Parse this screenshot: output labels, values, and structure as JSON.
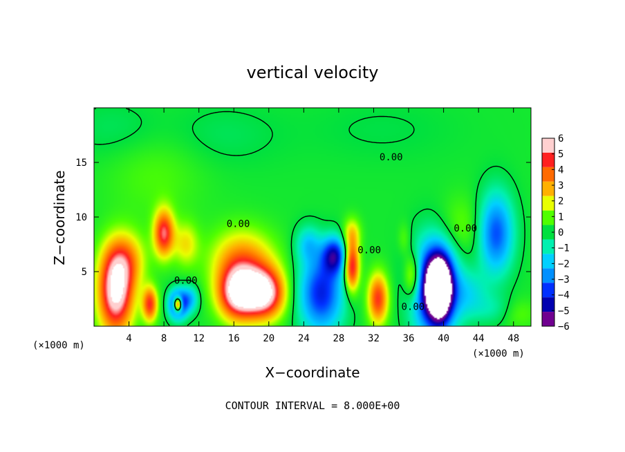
{
  "chart_data": {
    "type": "heatmap",
    "title": "vertical velocity",
    "xlabel": "X−coordinate",
    "ylabel": "Z−coordinate",
    "x_unit_label": "(×1000 m)",
    "z_unit_label": "(×1000 m)",
    "xlim": [
      0,
      50
    ],
    "ylim": [
      0,
      20
    ],
    "x_ticks": [
      4,
      8,
      12,
      16,
      20,
      24,
      28,
      32,
      36,
      40,
      44,
      48
    ],
    "y_ticks": [
      5,
      10,
      15
    ],
    "colorbar": {
      "min": -6,
      "max": 6,
      "ticks": [
        6,
        5,
        4,
        3,
        2,
        1,
        0,
        -1,
        -2,
        -3,
        -4,
        -5,
        -6
      ],
      "colors": [
        "#ffd0d0",
        "#ff2020",
        "#ff6a00",
        "#ffb000",
        "#e8ff00",
        "#50ff00",
        "#00e040",
        "#00f0b0",
        "#00d0ff",
        "#0090ff",
        "#0030ff",
        "#0000b0",
        "#700090"
      ]
    },
    "contour_labels": [
      {
        "text": "0.00",
        "x": 34.0,
        "z": 15.5
      },
      {
        "text": "0.00",
        "x": 16.5,
        "z": 9.4
      },
      {
        "text": "0.00",
        "x": 10.5,
        "z": 4.2
      },
      {
        "text": "0.00",
        "x": 31.5,
        "z": 7.0
      },
      {
        "text": "0.00",
        "x": 42.5,
        "z": 9.0
      },
      {
        "text": "0.00",
        "x": 36.5,
        "z": 1.8
      }
    ],
    "features": [
      {
        "x": 2.5,
        "z": 3.0,
        "sx": 1.4,
        "sz": 2.6,
        "w": 6.5
      },
      {
        "x": 3.5,
        "z": 6.0,
        "sx": 1.6,
        "sz": 1.8,
        "w": 3.0
      },
      {
        "x": 6.4,
        "z": 2.0,
        "sx": 0.6,
        "sz": 1.1,
        "w": 4.5
      },
      {
        "x": 8.0,
        "z": 8.5,
        "sx": 0.8,
        "sz": 1.5,
        "w": 5.0
      },
      {
        "x": 9.6,
        "z": 2.0,
        "sx": 0.7,
        "sz": 0.9,
        "w": -6.5
      },
      {
        "x": 9.6,
        "z": 2.0,
        "sx": 0.35,
        "sz": 0.5,
        "w": 9.5
      },
      {
        "x": 11.0,
        "z": 2.5,
        "sx": 0.7,
        "sz": 0.9,
        "w": -2.5
      },
      {
        "x": 16.5,
        "z": 3.0,
        "sx": 1.6,
        "sz": 1.7,
        "w": 6.5
      },
      {
        "x": 19.5,
        "z": 3.0,
        "sx": 1.6,
        "sz": 1.6,
        "w": 6.5
      },
      {
        "x": 17.0,
        "z": 6.0,
        "sx": 2.5,
        "sz": 2.0,
        "w": 3.2
      },
      {
        "x": 10.5,
        "z": 7.5,
        "sx": 1.0,
        "sz": 1.4,
        "w": 2.0
      },
      {
        "x": 7.0,
        "z": 14.5,
        "sx": 4.0,
        "sz": 3.5,
        "w": 0.7
      },
      {
        "x": 26.0,
        "z": 3.0,
        "sx": 1.8,
        "sz": 2.5,
        "w": -4.6
      },
      {
        "x": 27.5,
        "z": 6.5,
        "sx": 1.0,
        "sz": 1.2,
        "w": -4.5
      },
      {
        "x": 29.5,
        "z": 5.5,
        "sx": 0.6,
        "sz": 1.6,
        "w": 5.5
      },
      {
        "x": 29.5,
        "z": 8.5,
        "sx": 0.7,
        "sz": 1.0,
        "w": 2.0
      },
      {
        "x": 32.5,
        "z": 2.5,
        "sx": 0.8,
        "sz": 1.6,
        "w": 4.5
      },
      {
        "x": 24.5,
        "z": 7.5,
        "sx": 1.0,
        "sz": 1.2,
        "w": -2.0
      },
      {
        "x": 39.0,
        "z": 3.5,
        "sx": 1.8,
        "sz": 3.0,
        "w": -6.5
      },
      {
        "x": 39.5,
        "z": 3.5,
        "sx": 0.9,
        "sz": 1.8,
        "w": -9.5
      },
      {
        "x": 36.5,
        "z": 4.5,
        "sx": 0.7,
        "sz": 1.5,
        "w": 3.0
      },
      {
        "x": 35.5,
        "z": 8.0,
        "sx": 0.5,
        "sz": 1.0,
        "w": 0.8
      },
      {
        "x": 46.0,
        "z": 8.5,
        "sx": 1.4,
        "sz": 2.6,
        "w": -4.0
      },
      {
        "x": 43.0,
        "z": 3.0,
        "sx": 1.5,
        "sz": 1.5,
        "w": -1.5
      },
      {
        "x": 42.0,
        "z": 9.0,
        "sx": 1.8,
        "sz": 2.0,
        "w": 1.0
      },
      {
        "x": 46.0,
        "z": 1.5,
        "sx": 2.0,
        "sz": 1.0,
        "w": -1.0
      },
      {
        "x": 48.5,
        "z": 1.2,
        "sx": 1.5,
        "sz": 1.0,
        "w": 1.0
      },
      {
        "x": 3.0,
        "z": 18.0,
        "sx": 4.0,
        "sz": 2.0,
        "w": -0.6
      },
      {
        "x": 14.0,
        "z": 17.5,
        "sx": 5.0,
        "sz": 2.0,
        "w": -0.5
      },
      {
        "x": 33.0,
        "z": 18.0,
        "sx": 6.0,
        "sz": 2.0,
        "w": -0.3
      }
    ],
    "contour_interval_text": "CONTOUR INTERVAL = 8.000E+00"
  }
}
